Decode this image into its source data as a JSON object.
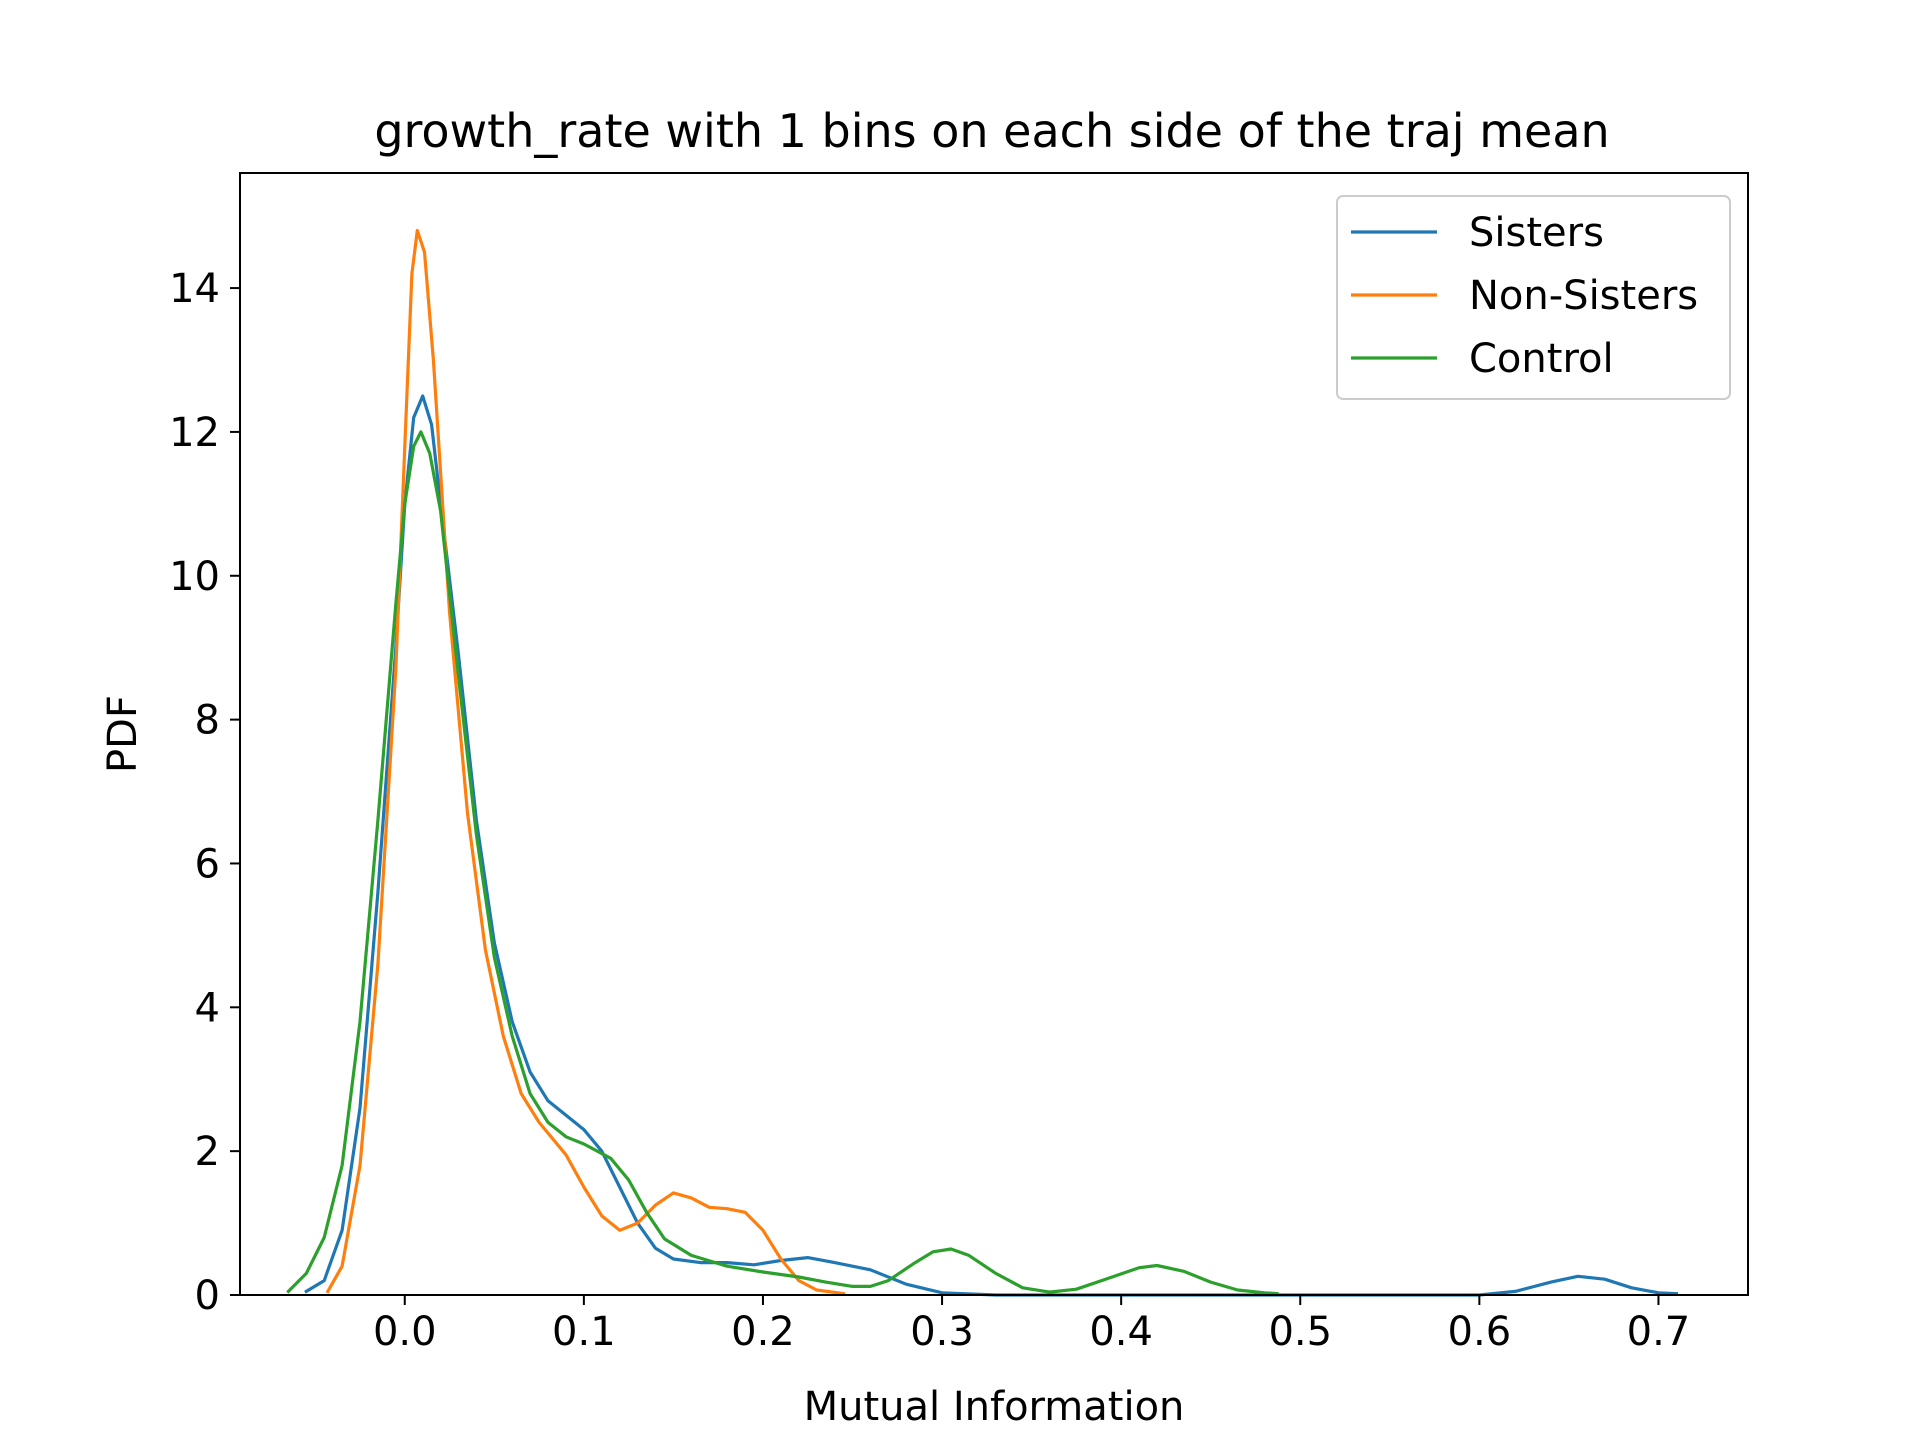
{
  "chart_data": {
    "type": "line",
    "title": "growth_rate with 1 bins on each side of the traj mean",
    "xlabel": "Mutual Information",
    "ylabel": "PDF",
    "xlim": [
      -0.092,
      0.75
    ],
    "ylim": [
      0,
      15.6
    ],
    "xticks": [
      0.0,
      0.1,
      0.2,
      0.3,
      0.4,
      0.5,
      0.6,
      0.7
    ],
    "xtick_labels": [
      "0.0",
      "0.1",
      "0.2",
      "0.3",
      "0.4",
      "0.5",
      "0.6",
      "0.7"
    ],
    "yticks": [
      0,
      2,
      4,
      6,
      8,
      10,
      12,
      14
    ],
    "ytick_labels": [
      "0",
      "2",
      "4",
      "6",
      "8",
      "10",
      "12",
      "14"
    ],
    "grid": false,
    "legend_position": "top-right",
    "series": [
      {
        "name": "Sisters",
        "color": "#1f77b4",
        "points": [
          [
            -0.055,
            0.05
          ],
          [
            -0.045,
            0.2
          ],
          [
            -0.035,
            0.9
          ],
          [
            -0.025,
            2.6
          ],
          [
            -0.015,
            5.6
          ],
          [
            -0.005,
            9.0
          ],
          [
            0.0,
            11.0
          ],
          [
            0.005,
            12.2
          ],
          [
            0.01,
            12.5
          ],
          [
            0.015,
            12.1
          ],
          [
            0.02,
            11.0
          ],
          [
            0.03,
            8.9
          ],
          [
            0.04,
            6.6
          ],
          [
            0.05,
            4.9
          ],
          [
            0.06,
            3.8
          ],
          [
            0.07,
            3.1
          ],
          [
            0.08,
            2.7
          ],
          [
            0.1,
            2.3
          ],
          [
            0.11,
            2.0
          ],
          [
            0.12,
            1.5
          ],
          [
            0.13,
            1.0
          ],
          [
            0.14,
            0.65
          ],
          [
            0.15,
            0.5
          ],
          [
            0.165,
            0.45
          ],
          [
            0.18,
            0.45
          ],
          [
            0.195,
            0.42
          ],
          [
            0.21,
            0.48
          ],
          [
            0.225,
            0.52
          ],
          [
            0.24,
            0.45
          ],
          [
            0.26,
            0.35
          ],
          [
            0.28,
            0.15
          ],
          [
            0.3,
            0.03
          ],
          [
            0.33,
            0.0
          ],
          [
            0.45,
            0.0
          ],
          [
            0.55,
            0.0
          ],
          [
            0.6,
            0.0
          ],
          [
            0.62,
            0.05
          ],
          [
            0.64,
            0.18
          ],
          [
            0.655,
            0.26
          ],
          [
            0.67,
            0.22
          ],
          [
            0.685,
            0.1
          ],
          [
            0.7,
            0.03
          ],
          [
            0.71,
            0.02
          ]
        ]
      },
      {
        "name": "Non-Sisters",
        "color": "#ff7f0e",
        "points": [
          [
            -0.043,
            0.05
          ],
          [
            -0.035,
            0.4
          ],
          [
            -0.025,
            1.8
          ],
          [
            -0.015,
            4.6
          ],
          [
            -0.005,
            8.7
          ],
          [
            0.0,
            11.8
          ],
          [
            0.004,
            14.2
          ],
          [
            0.007,
            14.8
          ],
          [
            0.011,
            14.5
          ],
          [
            0.016,
            13.0
          ],
          [
            0.025,
            9.5
          ],
          [
            0.035,
            6.7
          ],
          [
            0.045,
            4.8
          ],
          [
            0.055,
            3.6
          ],
          [
            0.065,
            2.8
          ],
          [
            0.075,
            2.4
          ],
          [
            0.09,
            1.95
          ],
          [
            0.1,
            1.5
          ],
          [
            0.11,
            1.1
          ],
          [
            0.12,
            0.9
          ],
          [
            0.13,
            1.0
          ],
          [
            0.14,
            1.25
          ],
          [
            0.15,
            1.42
          ],
          [
            0.16,
            1.35
          ],
          [
            0.17,
            1.22
          ],
          [
            0.18,
            1.2
          ],
          [
            0.19,
            1.15
          ],
          [
            0.2,
            0.9
          ],
          [
            0.21,
            0.5
          ],
          [
            0.22,
            0.2
          ],
          [
            0.23,
            0.07
          ],
          [
            0.245,
            0.02
          ]
        ]
      },
      {
        "name": "Control",
        "color": "#2ca02c",
        "points": [
          [
            -0.065,
            0.05
          ],
          [
            -0.055,
            0.3
          ],
          [
            -0.045,
            0.8
          ],
          [
            -0.035,
            1.8
          ],
          [
            -0.025,
            3.8
          ],
          [
            -0.015,
            6.6
          ],
          [
            -0.005,
            9.6
          ],
          [
            0.0,
            11.0
          ],
          [
            0.005,
            11.8
          ],
          [
            0.009,
            12.0
          ],
          [
            0.014,
            11.7
          ],
          [
            0.02,
            10.9
          ],
          [
            0.03,
            8.6
          ],
          [
            0.04,
            6.4
          ],
          [
            0.05,
            4.7
          ],
          [
            0.06,
            3.6
          ],
          [
            0.07,
            2.8
          ],
          [
            0.08,
            2.4
          ],
          [
            0.09,
            2.2
          ],
          [
            0.1,
            2.1
          ],
          [
            0.115,
            1.9
          ],
          [
            0.125,
            1.6
          ],
          [
            0.135,
            1.15
          ],
          [
            0.145,
            0.78
          ],
          [
            0.16,
            0.55
          ],
          [
            0.18,
            0.4
          ],
          [
            0.2,
            0.32
          ],
          [
            0.22,
            0.25
          ],
          [
            0.235,
            0.18
          ],
          [
            0.25,
            0.12
          ],
          [
            0.26,
            0.12
          ],
          [
            0.27,
            0.2
          ],
          [
            0.285,
            0.45
          ],
          [
            0.295,
            0.6
          ],
          [
            0.305,
            0.64
          ],
          [
            0.315,
            0.55
          ],
          [
            0.33,
            0.3
          ],
          [
            0.345,
            0.1
          ],
          [
            0.36,
            0.04
          ],
          [
            0.375,
            0.08
          ],
          [
            0.395,
            0.25
          ],
          [
            0.41,
            0.38
          ],
          [
            0.42,
            0.41
          ],
          [
            0.435,
            0.33
          ],
          [
            0.45,
            0.18
          ],
          [
            0.465,
            0.07
          ],
          [
            0.48,
            0.03
          ],
          [
            0.487,
            0.02
          ]
        ]
      }
    ]
  }
}
